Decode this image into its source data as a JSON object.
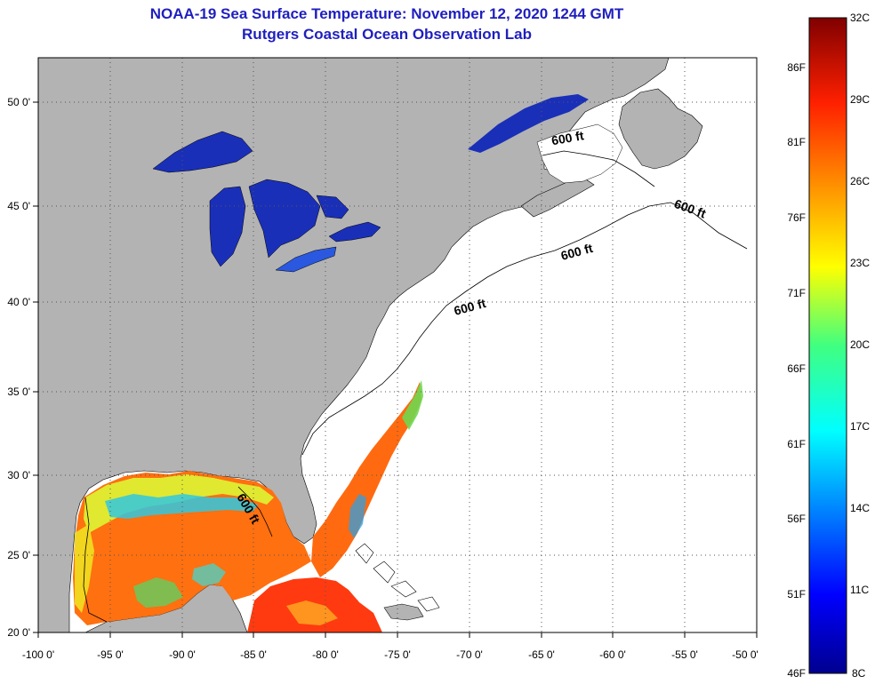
{
  "title": {
    "line1": "NOAA-19 Sea Surface Temperature:  November 12, 2020 1244 GMT",
    "line2": "Rutgers Coastal Ocean Observation Lab"
  },
  "map": {
    "lon_ticks": [
      "-100 0'",
      "-95 0'",
      "-90 0'",
      "-85 0'",
      "-80 0'",
      "-75 0'",
      "-70 0'",
      "-65 0'",
      "-60 0'",
      "-55 0'",
      "-50 0'"
    ],
    "lat_ticks": [
      "50 0'",
      "45 0'",
      "40 0'",
      "35 0'",
      "30 0'",
      "25 0'",
      "20 0'"
    ],
    "contour_labels": [
      "600 ft",
      "600 ft",
      "600 ft",
      "600 ft",
      "600 ft"
    ]
  },
  "colorbar": {
    "f_labels": [
      "86F",
      "81F",
      "76F",
      "71F",
      "66F",
      "61F",
      "56F",
      "51F",
      "46F"
    ],
    "c_labels": [
      "32C",
      "29C",
      "26C",
      "23C",
      "20C",
      "17C",
      "14C",
      "11C",
      "8C"
    ]
  },
  "colors": {
    "land": "#b3b3b3",
    "ocean": "#ffffff",
    "title": "#1f1fbf",
    "lake_blue": "#1030b0"
  }
}
